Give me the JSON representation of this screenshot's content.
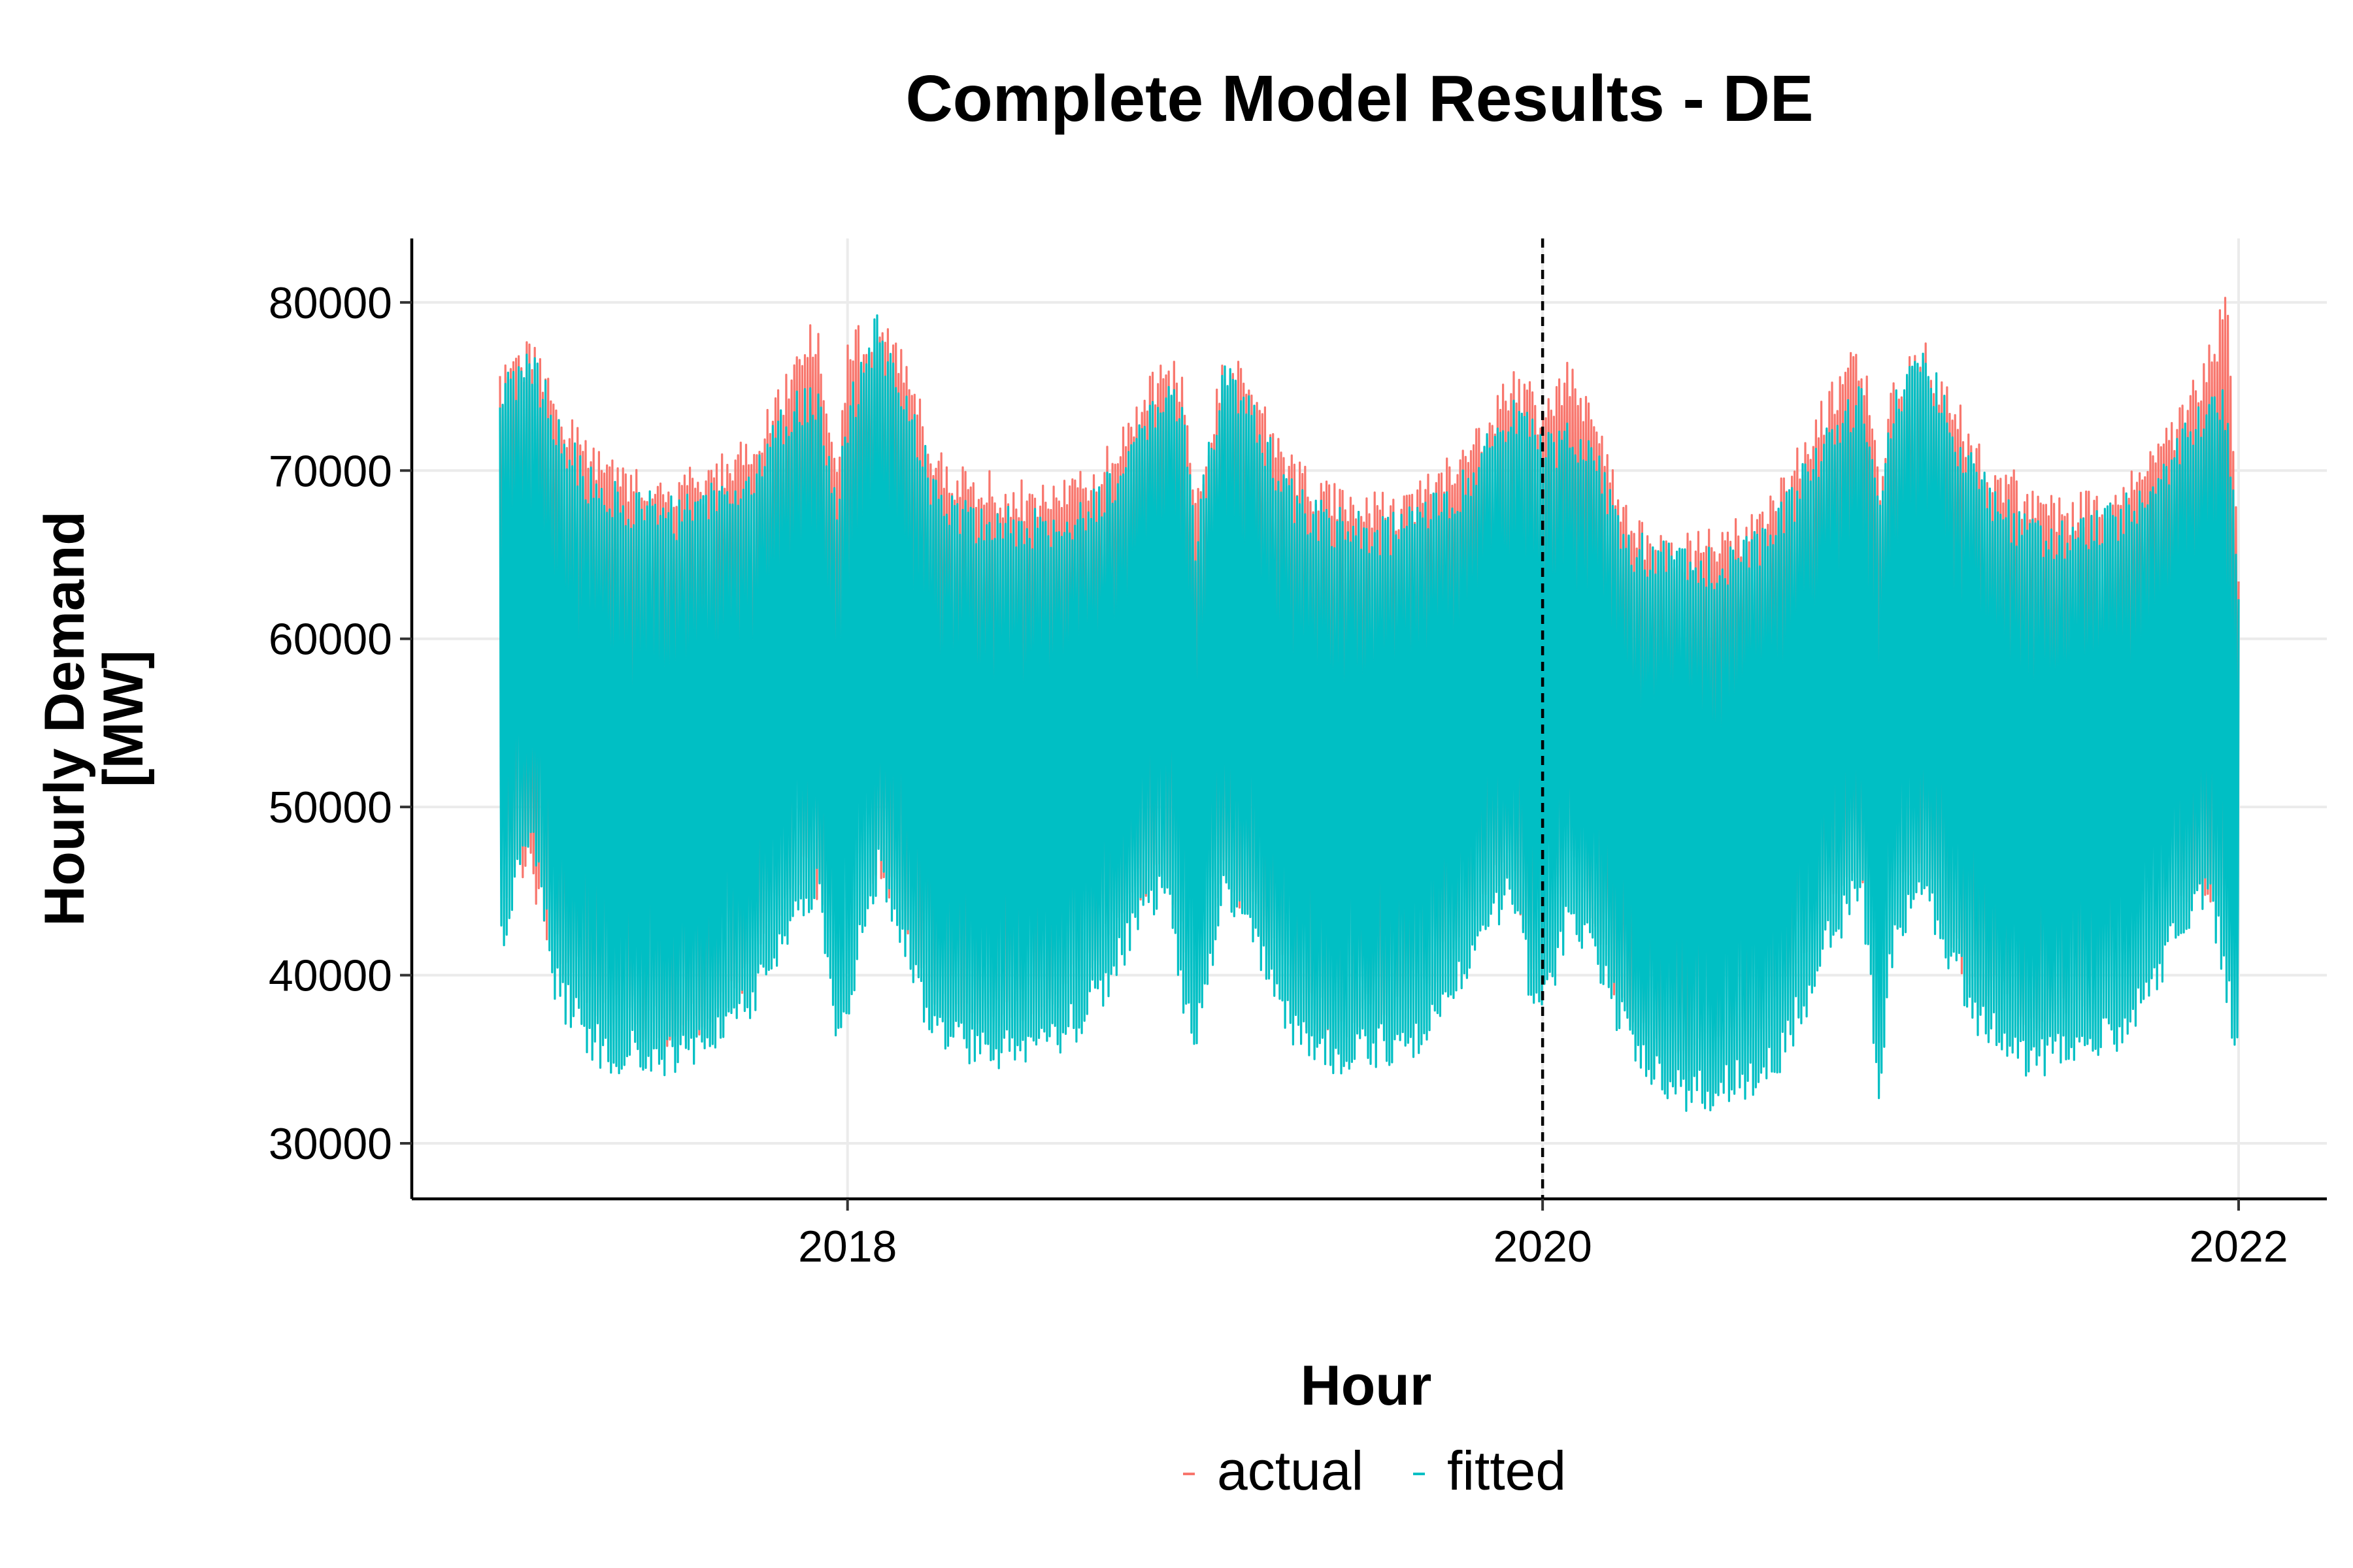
{
  "chart_data": {
    "type": "line",
    "title": "Complete Model Results - DE",
    "xlabel": "Hour",
    "ylabel_lines": [
      "Hourly Demand",
      "[MW]"
    ],
    "x_range": [
      "2017-01-01",
      "2022-01-01"
    ],
    "ylim": [
      26700,
      83800
    ],
    "x_ticks": [
      {
        "value": "2018-01-01",
        "label": "2018"
      },
      {
        "value": "2020-01-01",
        "label": "2020"
      },
      {
        "value": "2022-01-01",
        "label": "2022"
      }
    ],
    "y_ticks": [
      30000,
      40000,
      50000,
      60000,
      70000,
      80000
    ],
    "grid": true,
    "legend_position": "bottom",
    "reference_line": {
      "x": "2020-01-01",
      "style": "dashed",
      "color": "#000000"
    },
    "series": [
      {
        "name": "actual",
        "color": "#F8766D",
        "envelope": {
          "x": [
            "2017-01-01",
            "2017-02-01",
            "2017-03-01",
            "2017-04-01",
            "2017-05-01",
            "2017-06-01",
            "2017-07-01",
            "2017-08-01",
            "2017-09-01",
            "2017-10-01",
            "2017-11-01",
            "2017-12-01",
            "2017-12-20",
            "2018-01-01",
            "2018-02-01",
            "2018-03-01",
            "2018-04-01",
            "2018-05-01",
            "2018-06-01",
            "2018-07-01",
            "2018-08-01",
            "2018-09-01",
            "2018-10-01",
            "2018-11-01",
            "2018-12-01",
            "2018-12-20",
            "2019-01-01",
            "2019-02-01",
            "2019-03-01",
            "2019-04-01",
            "2019-05-01",
            "2019-06-01",
            "2019-07-01",
            "2019-08-01",
            "2019-09-01",
            "2019-10-01",
            "2019-11-01",
            "2019-12-01",
            "2019-12-20",
            "2020-01-01",
            "2020-02-01",
            "2020-03-01",
            "2020-04-01",
            "2020-05-01",
            "2020-06-01",
            "2020-07-01",
            "2020-08-01",
            "2020-09-01",
            "2020-10-01",
            "2020-11-01",
            "2020-12-01",
            "2020-12-20",
            "2021-01-01",
            "2021-02-01",
            "2021-03-01",
            "2021-04-01",
            "2021-05-01",
            "2021-06-01",
            "2021-07-01",
            "2021-08-01",
            "2021-09-01",
            "2021-10-01",
            "2021-11-01",
            "2021-12-01",
            "2021-12-20",
            "2022-01-01"
          ],
          "high": [
            76000,
            78000,
            75000,
            72000,
            71000,
            70500,
            70000,
            70500,
            71500,
            73000,
            76500,
            79500,
            70000,
            78000,
            80000,
            77000,
            72000,
            70500,
            70000,
            69500,
            69000,
            70000,
            71500,
            74000,
            77500,
            76000,
            68000,
            77500,
            76000,
            72000,
            70000,
            69500,
            69000,
            68500,
            70000,
            71000,
            73500,
            76000,
            75500,
            74000,
            77000,
            73000,
            67500,
            66500,
            66500,
            66500,
            67500,
            69000,
            72000,
            75500,
            78000,
            70000,
            75000,
            78500,
            75500,
            72000,
            70500,
            69000,
            68500,
            69000,
            70000,
            71500,
            74000,
            77500,
            81000,
            64000
          ],
          "low": [
            44000,
            45500,
            40000,
            38000,
            36500,
            36000,
            35500,
            36000,
            38000,
            40500,
            45000,
            44000,
            43000,
            44500,
            45500,
            42000,
            38000,
            37000,
            36500,
            37000,
            37500,
            38500,
            41000,
            44000,
            45500,
            41000,
            42000,
            45000,
            43000,
            39000,
            36500,
            36000,
            36500,
            37000,
            38500,
            41000,
            44500,
            44500,
            40000,
            43000,
            45500,
            41000,
            36500,
            35000,
            34000,
            35000,
            35500,
            37000,
            40500,
            44500,
            45000,
            43500,
            45000,
            45500,
            42000,
            38000,
            37000,
            36500,
            37000,
            38000,
            40500,
            45000,
            44000,
            43500,
            44500,
            48000
          ]
        }
      },
      {
        "name": "fitted",
        "color": "#00BFC4",
        "envelope": {
          "x": [
            "2017-01-01",
            "2017-02-01",
            "2017-03-01",
            "2017-04-01",
            "2017-05-01",
            "2017-06-01",
            "2017-07-01",
            "2017-08-01",
            "2017-09-01",
            "2017-10-01",
            "2017-11-01",
            "2017-12-01",
            "2017-12-20",
            "2018-01-01",
            "2018-02-01",
            "2018-03-01",
            "2018-04-01",
            "2018-05-01",
            "2018-06-01",
            "2018-07-01",
            "2018-08-01",
            "2018-09-01",
            "2018-10-01",
            "2018-11-01",
            "2018-12-01",
            "2018-12-20",
            "2019-01-01",
            "2019-02-01",
            "2019-03-01",
            "2019-04-01",
            "2019-05-01",
            "2019-06-01",
            "2019-07-01",
            "2019-08-01",
            "2019-09-01",
            "2019-10-01",
            "2019-11-01",
            "2019-12-01",
            "2019-12-20",
            "2020-01-01",
            "2020-02-01",
            "2020-03-01",
            "2020-04-01",
            "2020-05-01",
            "2020-06-01",
            "2020-07-01",
            "2020-08-01",
            "2020-09-01",
            "2020-10-01",
            "2020-11-01",
            "2020-12-01",
            "2020-12-20",
            "2021-01-01",
            "2021-02-01",
            "2021-03-01",
            "2021-04-01",
            "2021-05-01",
            "2021-06-01",
            "2021-07-01",
            "2021-08-01",
            "2021-09-01",
            "2021-10-01",
            "2021-11-01",
            "2021-12-01",
            "2021-12-20",
            "2022-01-01"
          ],
          "high": [
            75500,
            77500,
            74000,
            70500,
            69500,
            69000,
            68500,
            69000,
            70000,
            71500,
            74500,
            75500,
            69000,
            74500,
            79500,
            75500,
            70000,
            68500,
            68000,
            68000,
            67500,
            68500,
            70000,
            72500,
            75500,
            75000,
            67000,
            77000,
            75000,
            70500,
            68500,
            68000,
            67500,
            67500,
            68500,
            69500,
            72000,
            74500,
            74000,
            72500,
            73000,
            71000,
            66500,
            66000,
            66000,
            65500,
            66000,
            67500,
            70500,
            73500,
            75500,
            69000,
            74500,
            78500,
            74000,
            70500,
            68500,
            67500,
            67000,
            67500,
            68500,
            70000,
            72500,
            74500,
            75000,
            63500
          ],
          "low": [
            40000,
            48000,
            38000,
            35000,
            34000,
            34000,
            34000,
            34500,
            35500,
            38000,
            42000,
            44000,
            34000,
            37000,
            45000,
            41000,
            35500,
            34500,
            34000,
            34500,
            35000,
            36000,
            38500,
            42000,
            44500,
            37000,
            35000,
            44000,
            41000,
            36500,
            34500,
            34000,
            34500,
            34500,
            35500,
            38000,
            42000,
            44000,
            37500,
            36500,
            43000,
            39000,
            35000,
            33000,
            31500,
            32000,
            32500,
            33500,
            37000,
            41500,
            44000,
            31500,
            40000,
            44500,
            40500,
            36500,
            34500,
            33500,
            34000,
            34500,
            35500,
            38000,
            42000,
            44500,
            37500,
            34500
          ]
        }
      }
    ]
  }
}
